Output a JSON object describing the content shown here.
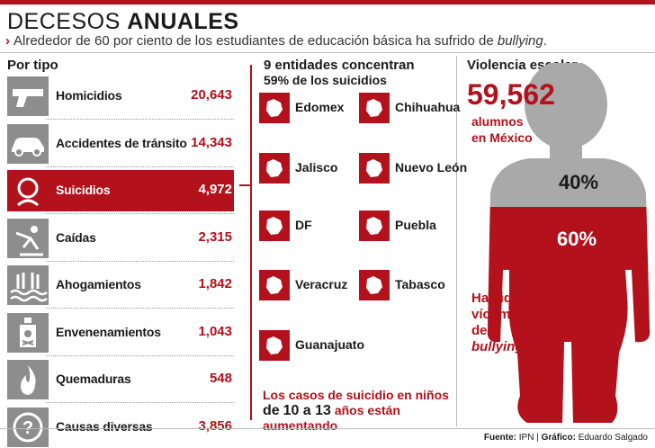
{
  "header": {
    "title_light": "DECESOS",
    "title_bold": "ANUALES",
    "subtitle_pre": "Alrededor de 60 por ciento de los estudiantes de educación básica ha sufrido de",
    "subtitle_em": "bullying",
    "subtitle_post": "."
  },
  "sections": {
    "by_type": "Por tipo",
    "states_line1": "9 entidades concentran",
    "states_line2": "59% de los suicidios",
    "violence": "Violencia escolar"
  },
  "chart_data": [
    {
      "type": "table",
      "title": "Por tipo",
      "categories": [
        "Homicidios",
        "Accidentes de tránsito",
        "Suicidios",
        "Caídas",
        "Ahogamientos",
        "Envenenamientos",
        "Quemaduras",
        "Causas diversas"
      ],
      "labels": [
        "20,643",
        "14,343",
        "4,972",
        "2,315",
        "1,842",
        "1,043",
        "548",
        "3,856"
      ],
      "values": [
        20643,
        14343,
        4972,
        2315,
        1842,
        1043,
        548,
        3856
      ],
      "highlight": "Suicidios",
      "icons": [
        "gun-icon",
        "car-icon",
        "head-icon",
        "falling-person-icon",
        "drowning-hands-icon",
        "poison-bottle-icon",
        "flame-icon",
        "question-icon"
      ]
    },
    {
      "type": "pie",
      "title": "Violencia escolar",
      "categories": [
        "",
        ""
      ],
      "values": [
        40,
        60
      ],
      "labels": [
        "40%",
        "60%"
      ],
      "colors": [
        "#a9a9a9",
        "#b3111b"
      ]
    }
  ],
  "states": [
    "Edomex",
    "Chihuahua",
    "Jalisco",
    "Nuevo León",
    "DF",
    "Puebla",
    "Veracruz",
    "Tabasco",
    "Guanajuato"
  ],
  "note": {
    "line1": "Los casos de suicidio en niños",
    "line2_pre": "de",
    "line2_a": "10 a 13",
    "line2_post": "años están aumentando"
  },
  "violence": {
    "total": "59,562",
    "unit_line1": "alumnos",
    "unit_line2": "en México",
    "victim_l1": "Ha sido",
    "victim_l2": "víctima",
    "victim_l3": "de",
    "victim_em": "bullying"
  },
  "footer": {
    "source_label": "Fuente:",
    "source": "IPN",
    "credit_label": "Gráfico:",
    "credit": "Eduardo Salgado"
  },
  "colors": {
    "accent": "#b3111b",
    "icon_gray": "#8d8d8d",
    "silhouette_gray": "#a9a9a9"
  }
}
